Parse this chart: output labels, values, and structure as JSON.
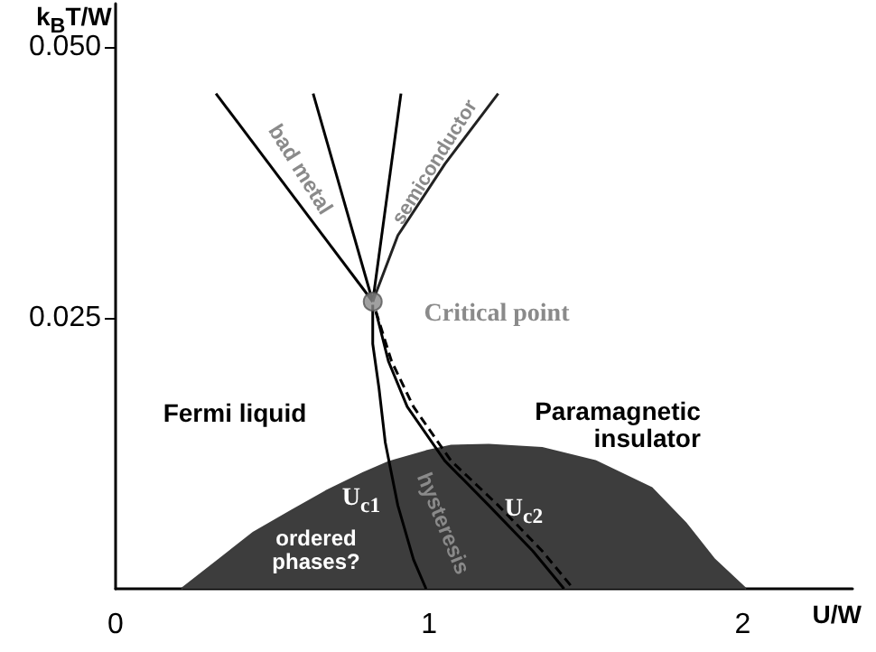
{
  "chart_data": {
    "type": "line",
    "xlabel": "U/W",
    "ylabel": "k$_{B}$T/W",
    "xlim": [
      0,
      2.35
    ],
    "ylim": [
      0,
      0.054
    ],
    "xticks": [
      0,
      1,
      2
    ],
    "yticks": [
      {
        "value": 0.025,
        "label": "0.025"
      },
      {
        "value": 0.05,
        "label": "0.050"
      }
    ],
    "grid": false,
    "series": [
      {
        "type": "area",
        "color": "#3d3d3d",
        "x": [
          0.21,
          0.33,
          0.44,
          0.56,
          0.67,
          0.79,
          0.87,
          0.99,
          1.07,
          1.19,
          1.36,
          1.53,
          1.71,
          1.82,
          1.91,
          2.01
        ],
        "values": [
          0,
          0.0027,
          0.0052,
          0.0072,
          0.009,
          0.0107,
          0.0117,
          0.0127,
          0.0132,
          0.0133,
          0.013,
          0.0118,
          0.0093,
          0.006,
          0.0027,
          0
        ]
      },
      {
        "color": "#000000",
        "x": [
          0.82,
          0.82,
          0.84,
          0.86,
          0.9,
          0.95,
          0.99
        ],
        "values": [
          0.0262,
          0.0226,
          0.0185,
          0.0135,
          0.0077,
          0.0027,
          0
        ]
      },
      {
        "color": "#000000",
        "x": [
          0.83,
          0.87,
          0.93,
          1.05,
          1.19,
          1.33,
          1.43
        ],
        "values": [
          0.0256,
          0.021,
          0.0168,
          0.0118,
          0.0077,
          0.0035,
          0
        ]
      },
      {
        "color": "#000000",
        "line_style": "dashed",
        "x": [
          0.83,
          0.88,
          0.95,
          1.07,
          1.22,
          1.36,
          1.46
        ],
        "values": [
          0.0256,
          0.021,
          0.0168,
          0.0118,
          0.0077,
          0.0035,
          0
        ]
      },
      {
        "color": "#000000",
        "x": [
          0.82,
          0.32
        ],
        "values": [
          0.0265,
          0.0457
        ]
      },
      {
        "color": "#000000",
        "x": [
          0.82,
          0.63
        ],
        "values": [
          0.0265,
          0.0457
        ]
      },
      {
        "color": "#000000",
        "x": [
          0.82,
          0.91
        ],
        "values": [
          0.0265,
          0.0457
        ]
      },
      {
        "color": "#222222",
        "x": [
          0.82,
          0.9,
          1.05,
          1.22
        ],
        "values": [
          0.0265,
          0.0326,
          0.0392,
          0.0457
        ]
      },
      {
        "type": "scatter",
        "color": "#888888",
        "x": [
          0.82
        ],
        "values": [
          0.0265
        ]
      }
    ],
    "annotations": [
      "Critical point",
      "Fermi liquid",
      "Paramagnetic\ninsulator",
      "U$_{c1}$",
      "U$_{c2}$",
      "ordered\nphases?",
      "hysteresis",
      "bad metal",
      "semiconductor"
    ]
  }
}
